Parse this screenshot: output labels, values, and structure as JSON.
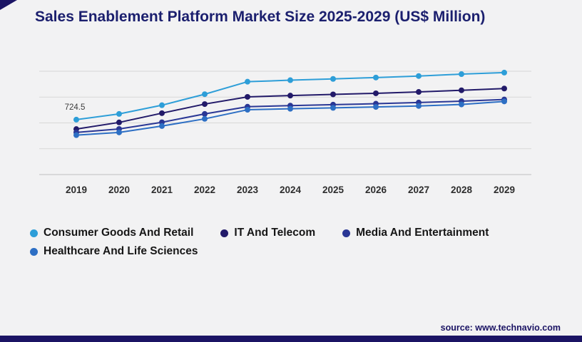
{
  "title": "Sales Enablement Platform Market Size 2025-2029 (US$ Million)",
  "source": "source: www.technavio.com",
  "colors": {
    "title": "#1b1f6e",
    "bottom_bar": "#1b1464",
    "gridline": "#d7d7d7",
    "axis": "#c0c0c0"
  },
  "chart_data": {
    "type": "line",
    "title": "Sales Enablement Platform Market Size 2025-2029 (US$ Million)",
    "xlabel": "",
    "ylabel": "US$ Million",
    "x": [
      "2019",
      "2020",
      "2021",
      "2022",
      "2023",
      "2024",
      "2025",
      "2026",
      "2027",
      "2028",
      "2029"
    ],
    "series": [
      {
        "name": "Consumer Goods And Retail",
        "color": "#2d9ed8",
        "values": [
          724.5,
          800,
          915,
          1060,
          1225,
          1245,
          1262,
          1280,
          1300,
          1325,
          1345
        ]
      },
      {
        "name": "IT And Telecom",
        "color": "#221a69",
        "values": [
          600,
          688,
          810,
          930,
          1025,
          1042,
          1058,
          1072,
          1090,
          1112,
          1135
        ]
      },
      {
        "name": "Media And Entertainment",
        "color": "#2a3795",
        "values": [
          556,
          602,
          690,
          800,
          895,
          910,
          922,
          935,
          950,
          968,
          990
        ]
      },
      {
        "name": "Healthcare And Life Sciences",
        "color": "#2d6fc4",
        "values": [
          520,
          556,
          640,
          735,
          855,
          868,
          880,
          892,
          905,
          925,
          965
        ]
      }
    ],
    "annotation": {
      "text": "724.5",
      "series": 0,
      "index": 0
    },
    "ylim": [
      0,
      1410
    ],
    "gridlines": 5,
    "grid": true,
    "legend_position": "bottom"
  }
}
